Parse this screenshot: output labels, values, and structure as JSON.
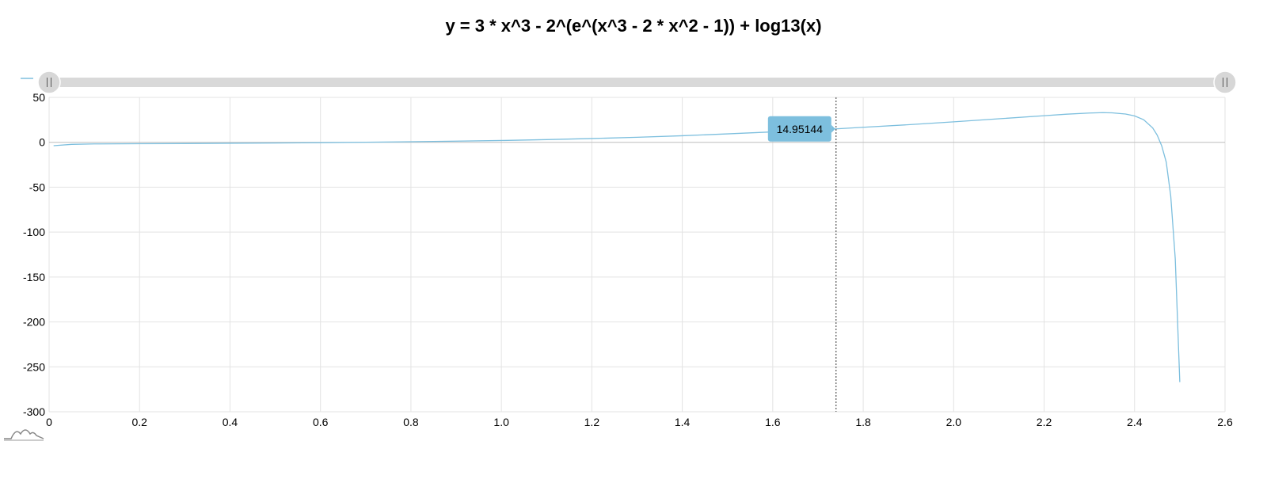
{
  "chart_data": {
    "type": "line",
    "title": "y = 3 * x^3 - 2^(e^(x^3 - 2 * x^2 - 1)) + log13(x)",
    "xlabel": "",
    "ylabel": "",
    "xlim": [
      0,
      2.6
    ],
    "ylim": [
      -300,
      50
    ],
    "x_ticks": [
      "0",
      "0.2",
      "0.4",
      "0.6",
      "0.8",
      "1.0",
      "1.2",
      "1.4",
      "1.6",
      "1.8",
      "2.0",
      "2.2",
      "2.4",
      "2.6"
    ],
    "y_ticks": [
      "50",
      "0",
      "-50",
      "-100",
      "-150",
      "-200",
      "-250",
      "-300"
    ],
    "grid": true,
    "series": [
      {
        "color": "#7dbfde",
        "x": [
          0.01,
          0.05,
          0.1,
          0.2,
          0.3,
          0.4,
          0.5,
          0.6,
          0.7,
          0.8,
          0.9,
          1.0,
          1.1,
          1.2,
          1.3,
          1.4,
          1.5,
          1.6,
          1.7,
          1.74,
          1.8,
          1.9,
          2.0,
          2.1,
          2.2,
          2.25,
          2.3,
          2.33,
          2.35,
          2.38,
          2.4,
          2.42,
          2.44,
          2.45,
          2.46,
          2.47,
          2.48,
          2.49,
          2.5
        ],
        "values": [
          -3.8,
          -2.3,
          -1.8,
          -1.6,
          -1.4,
          -1.1,
          -0.8,
          -0.4,
          0.1,
          0.6,
          1.3,
          2.0,
          3.0,
          4.2,
          5.6,
          7.3,
          9.4,
          11.6,
          14.0,
          14.95,
          16.7,
          19.6,
          22.8,
          26.2,
          29.6,
          31.3,
          32.6,
          33.0,
          32.8,
          31.5,
          29.4,
          25.2,
          16.0,
          8.0,
          -4.0,
          -22.0,
          -60.0,
          -130.0,
          -267.0
        ]
      }
    ],
    "tooltip": {
      "x": 1.74,
      "value": "14.95144"
    }
  }
}
